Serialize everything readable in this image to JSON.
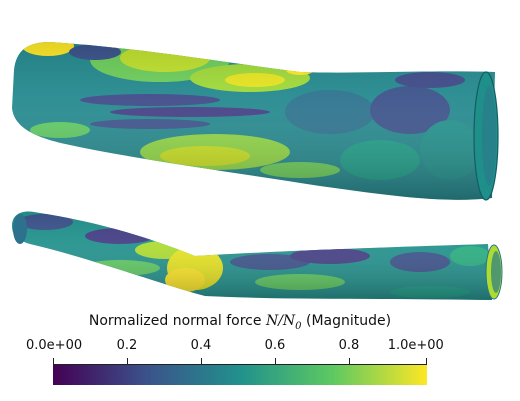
{
  "colorbar": {
    "title_text": "Normalized normal force ",
    "title_math_var": "N",
    "title_math_slash": "/",
    "title_math_base": "N",
    "title_math_sub": "0",
    "title_suffix": " (Magnitude)",
    "ticks": [
      "0.0e+00",
      "0.2",
      "0.4",
      "0.6",
      "0.8",
      "1.0e+00"
    ],
    "tick_values": [
      0,
      0.2,
      0.4,
      0.6,
      0.8,
      1.0
    ],
    "range": [
      0,
      1
    ],
    "colormap": "viridis",
    "colors": [
      "#440154",
      "#3b528b",
      "#21918c",
      "#5ec962",
      "#fde725"
    ]
  },
  "objects": [
    {
      "name": "upper-vessel"
    },
    {
      "name": "lower-vessel"
    }
  ]
}
